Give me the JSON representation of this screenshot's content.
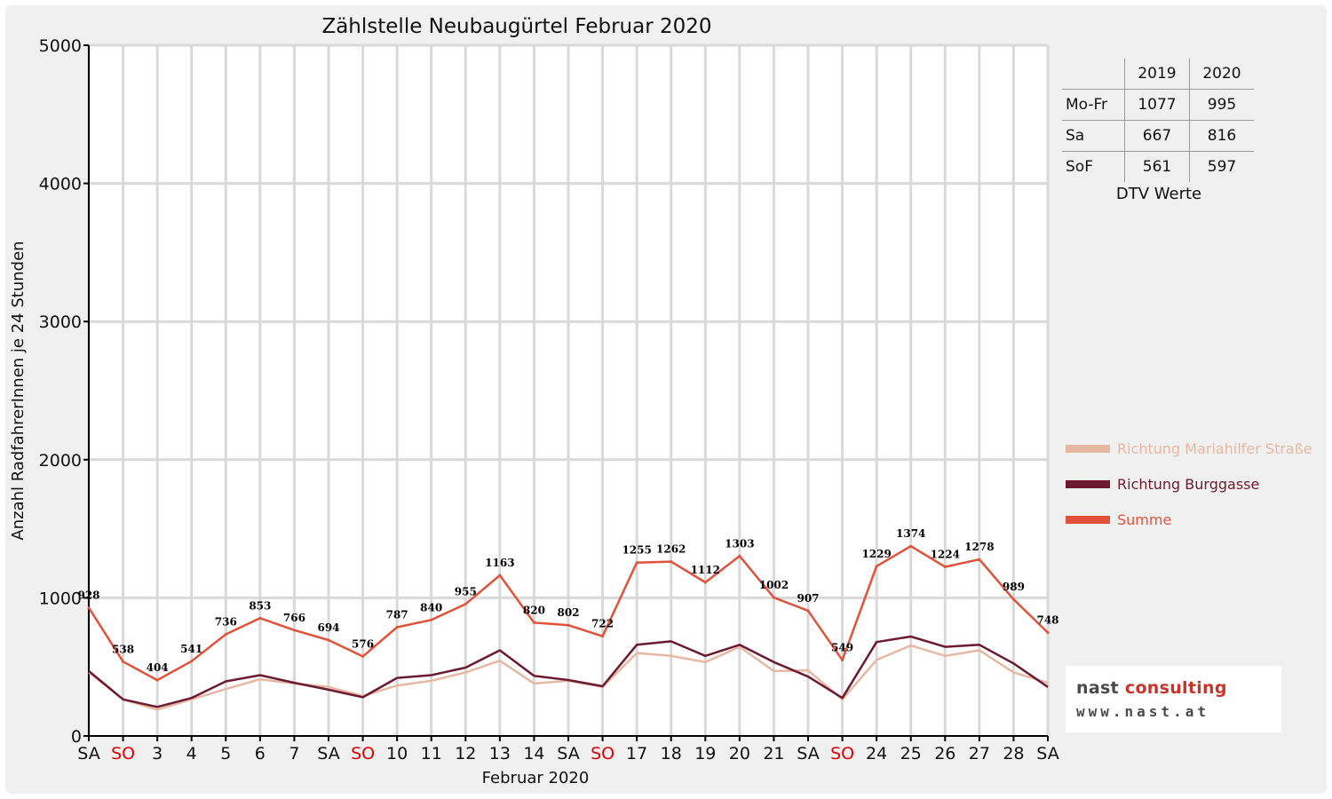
{
  "title": "Zählstelle Neubaugürtel Februar 2020",
  "colors": {
    "background": "#f0f0f0",
    "plot_background": "#ffffff",
    "gridline": "#d9d9d9",
    "weekend_red": "#e00000",
    "mariahilfer": "#e6b8a2",
    "burggasse": "#6b1a32",
    "summe": "#e0533a"
  },
  "chart_data": {
    "type": "line",
    "title": "Zählstelle Neubaugürtel Februar 2020",
    "xlabel": "Februar 2020",
    "ylabel": "Anzahl RadfahrerInnen je 24 Stunden",
    "ylim": [
      0,
      5000
    ],
    "yticks": [
      0,
      1000,
      2000,
      3000,
      4000,
      5000
    ],
    "grid": true,
    "legend_position": "right",
    "categories": [
      "SA",
      "SO",
      "3",
      "4",
      "5",
      "6",
      "7",
      "SA",
      "SO",
      "10",
      "11",
      "12",
      "13",
      "14",
      "SA",
      "SO",
      "17",
      "18",
      "19",
      "20",
      "21",
      "SA",
      "SO",
      "24",
      "25",
      "26",
      "27",
      "28",
      "SA"
    ],
    "category_colors": [
      "#111111",
      "#e00000",
      "#111111",
      "#111111",
      "#111111",
      "#111111",
      "#111111",
      "#111111",
      "#e00000",
      "#111111",
      "#111111",
      "#111111",
      "#111111",
      "#111111",
      "#111111",
      "#e00000",
      "#111111",
      "#111111",
      "#111111",
      "#111111",
      "#111111",
      "#111111",
      "#e00000",
      "#111111",
      "#111111",
      "#111111",
      "#111111",
      "#111111",
      "#111111"
    ],
    "series": [
      {
        "name": "Richtung Mariahilfer Straße",
        "color": "#e6b8a2",
        "values": [
          460,
          265,
          190,
          265,
          340,
          410,
          380,
          355,
          290,
          365,
          400,
          460,
          545,
          380,
          400,
          355,
          600,
          580,
          535,
          645,
          470,
          475,
          265,
          550,
          655,
          580,
          620,
          460,
          385
        ],
        "labels": false
      },
      {
        "name": "Richtung Burggasse",
        "color": "#6b1a32",
        "values": [
          470,
          265,
          210,
          275,
          395,
          440,
          385,
          335,
          280,
          420,
          440,
          495,
          620,
          435,
          405,
          360,
          660,
          685,
          580,
          660,
          535,
          430,
          275,
          680,
          720,
          645,
          660,
          525,
          355
        ],
        "labels": false
      },
      {
        "name": "Summe",
        "color": "#e0533a",
        "values": [
          928,
          538,
          404,
          541,
          736,
          853,
          766,
          694,
          576,
          787,
          840,
          955,
          1163,
          820,
          802,
          722,
          1255,
          1262,
          1112,
          1303,
          1002,
          907,
          549,
          1229,
          1374,
          1224,
          1278,
          989,
          748
        ],
        "labels": true
      }
    ]
  },
  "dtv_table": {
    "headers": [
      "",
      "2019",
      "2020"
    ],
    "rows": [
      {
        "label": "Mo-Fr",
        "v2019": "1077",
        "v2020": "995"
      },
      {
        "label": "Sa",
        "v2019": "667",
        "v2020": "816"
      },
      {
        "label": "SoF",
        "v2019": "561",
        "v2020": "597"
      }
    ],
    "caption": "DTV Werte"
  },
  "legend": {
    "items": [
      {
        "label": "Richtung Mariahilfer Straße",
        "color": "#e6b8a2"
      },
      {
        "label": "Richtung Burggasse",
        "color": "#6b1a32"
      },
      {
        "label": "Summe",
        "color": "#e0533a"
      }
    ]
  },
  "logo": {
    "name_part1": "nast",
    "name_part2": "consulting",
    "url": "www.nast.at"
  }
}
